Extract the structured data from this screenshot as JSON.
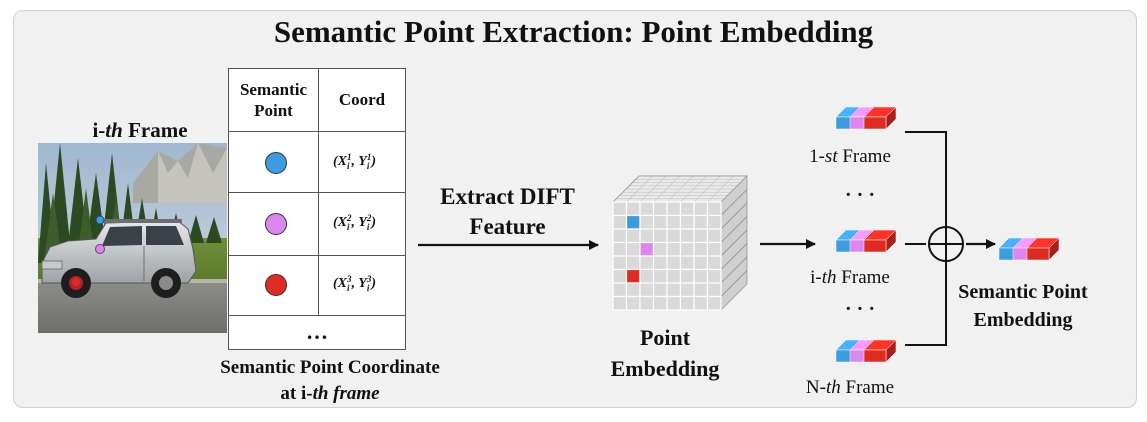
{
  "title": "Semantic Point Extraction: Point Embedding",
  "frame_label": {
    "prefix": "i-",
    "italic": "th",
    "suffix": " Frame"
  },
  "table": {
    "header_point_line1": "Semantic",
    "header_point_line2": "Point",
    "header_coord": "Coord",
    "rows": [
      {
        "color": "#3d9be0",
        "coord": [
          "X",
          "i",
          "1",
          "Y",
          "i",
          "1"
        ]
      },
      {
        "color": "#dd86ee",
        "coord": [
          "X",
          "i",
          "2",
          "Y",
          "i",
          "2"
        ]
      },
      {
        "color": "#de2c22",
        "coord": [
          "X",
          "i",
          "3",
          "Y",
          "i",
          "3"
        ]
      }
    ],
    "ellipsis": "…"
  },
  "coord_caption": {
    "line1": "Semantic Point Coordinate",
    "line2_prefix": "at i-",
    "line2_italic": "th frame"
  },
  "extract_label": {
    "line1": "Extract DIFT",
    "line2": "Feature"
  },
  "point_embedding_label": {
    "line1": "Point",
    "line2": "Embedding"
  },
  "frames": [
    {
      "prefix": "1-",
      "italic": "st",
      "suffix": " Frame"
    },
    {
      "prefix": "i-",
      "italic": "th",
      "suffix": " Frame"
    },
    {
      "prefix": "N-",
      "italic": "th",
      "suffix": " Frame"
    }
  ],
  "dots": "· · ·",
  "result_label": {
    "line1": "Semantic Point",
    "line2": "Embedding"
  },
  "colors": {
    "blue": "#3d9be0",
    "pink": "#dd86ee",
    "red": "#de2c22",
    "grid": "#d9d9d9"
  }
}
